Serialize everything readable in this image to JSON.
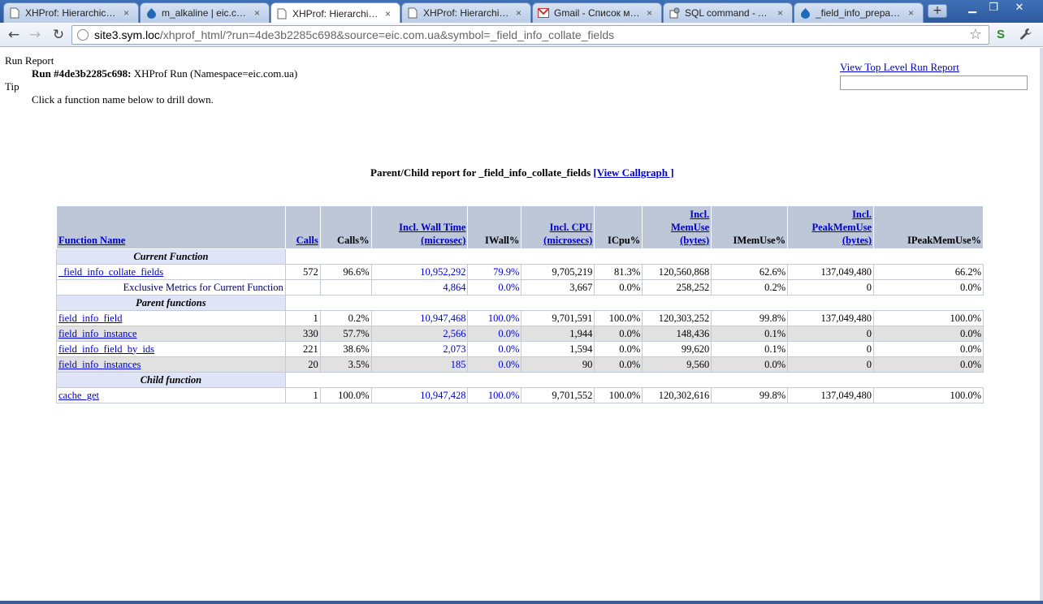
{
  "browser": {
    "tabs": [
      {
        "title": "XHProf: Hierarchical ...",
        "icon": "page-icon",
        "active": false
      },
      {
        "title": "m_alkaline | eic.com...",
        "icon": "drupal-icon",
        "active": false
      },
      {
        "title": "XHProf: Hierarchical ...",
        "icon": "page-icon",
        "active": true
      },
      {
        "title": "XHProf: Hierarchical ...",
        "icon": "page-icon",
        "active": false
      },
      {
        "title": "Gmail - Список мыл...",
        "icon": "gmail-icon",
        "active": false
      },
      {
        "title": "SQL command - Adm...",
        "icon": "adminer-icon",
        "active": false
      },
      {
        "title": "_field_info_prepare...",
        "icon": "drupal-icon",
        "active": false
      }
    ],
    "tab_close_glyph": "×",
    "new_tab_glyph": "+",
    "window_buttons": {
      "minimize": "▁",
      "restore": "❐",
      "close": "✕"
    },
    "nav": {
      "back": "←",
      "forward": "→",
      "reload": "↻"
    },
    "url_host": "site3.sym.loc",
    "url_rest": "/xhprof_html/?run=4de3b2285c698&source=eic.com.ua&symbol=_field_info_collate_fields",
    "star": "☆",
    "ext1": "S",
    "wrench": "🔧"
  },
  "page": {
    "run_report_label": "Run Report",
    "run_id_label": "Run #4de3b2285c698:",
    "run_desc": "XHProf Run (Namespace=eic.com.ua)",
    "tip_label": "Tip",
    "tip_text": "Click a function name below to drill down.",
    "top_link": "View Top Level Run Report",
    "search_value": "",
    "report_title": "Parent/Child report for _field_info_collate_fields",
    "callgraph_link": "[View Callgraph ]"
  },
  "table": {
    "headers": {
      "fn": "Function Name",
      "calls": "Calls",
      "calls_pct": "Calls%",
      "wall_1": "Incl. Wall Time",
      "wall_2": "(microsec)",
      "iwall_pct": "IWall%",
      "cpu_1": "Incl. CPU",
      "cpu_2": "(microsecs)",
      "icpu_pct": "ICpu%",
      "mem_1": "Incl.",
      "mem_2": "MemUse",
      "mem_3": "(bytes)",
      "imem_pct": "IMemUse%",
      "pmem_1": "Incl.",
      "pmem_2": "PeakMemUse",
      "pmem_3": "(bytes)",
      "ipmem_pct": "IPeakMemUse%"
    },
    "sections": {
      "current": "Current Function",
      "parents": "Parent functions",
      "children": "Child function"
    },
    "current": {
      "fn": "_field_info_collate_fields",
      "calls": "572",
      "calls_pct": "96.6%",
      "wall": "10,952,292",
      "iwall": "79.9%",
      "cpu": "9,705,219",
      "icpu": "81.3%",
      "mem": "120,560,868",
      "imem": "62.6%",
      "pmem": "137,049,480",
      "ipmem": "66.2%"
    },
    "exclusive": {
      "label": "Exclusive Metrics for Current Function",
      "wall": "4,864",
      "iwall": "0.0%",
      "cpu": "3,667",
      "icpu": "0.0%",
      "mem": "258,252",
      "imem": "0.2%",
      "pmem": "0",
      "ipmem": "0.0%"
    },
    "parents": [
      {
        "fn": "field_info_field",
        "calls": "1",
        "calls_pct": "0.2%",
        "wall": "10,947,468",
        "iwall": "100.0%",
        "cpu": "9,701,591",
        "icpu": "100.0%",
        "mem": "120,303,252",
        "imem": "99.8%",
        "pmem": "137,049,480",
        "ipmem": "100.0%"
      },
      {
        "fn": "field_info_instance",
        "calls": "330",
        "calls_pct": "57.7%",
        "wall": "2,566",
        "iwall": "0.0%",
        "cpu": "1,944",
        "icpu": "0.0%",
        "mem": "148,436",
        "imem": "0.1%",
        "pmem": "0",
        "ipmem": "0.0%"
      },
      {
        "fn": "field_info_field_by_ids",
        "calls": "221",
        "calls_pct": "38.6%",
        "wall": "2,073",
        "iwall": "0.0%",
        "cpu": "1,594",
        "icpu": "0.0%",
        "mem": "99,620",
        "imem": "0.1%",
        "pmem": "0",
        "ipmem": "0.0%"
      },
      {
        "fn": "field_info_instances",
        "calls": "20",
        "calls_pct": "3.5%",
        "wall": "185",
        "iwall": "0.0%",
        "cpu": "90",
        "icpu": "0.0%",
        "mem": "9,560",
        "imem": "0.0%",
        "pmem": "0",
        "ipmem": "0.0%"
      }
    ],
    "children": [
      {
        "fn": "cache_get",
        "calls": "1",
        "calls_pct": "100.0%",
        "wall": "10,947,428",
        "iwall": "100.0%",
        "cpu": "9,701,552",
        "icpu": "100.0%",
        "mem": "120,302,616",
        "imem": "99.8%",
        "pmem": "137,049,480",
        "ipmem": "100.0%"
      }
    ]
  }
}
